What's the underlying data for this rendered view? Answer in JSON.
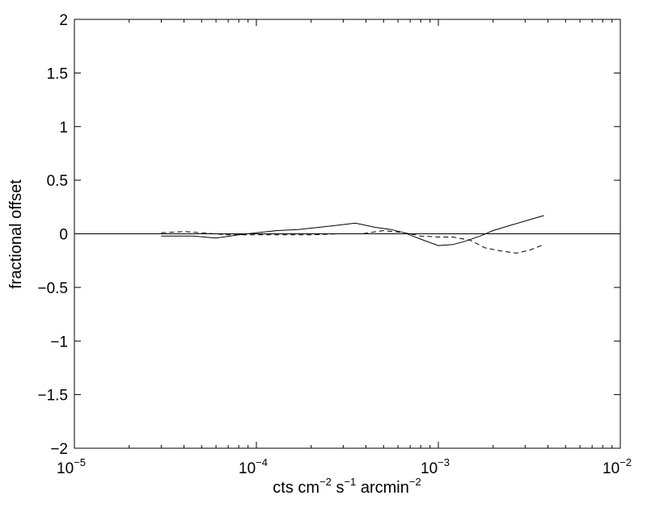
{
  "chart_data": {
    "type": "line",
    "title": "",
    "xlabel": {
      "parts": [
        {
          "text": "cts cm",
          "sup": false
        },
        {
          "text": "−2",
          "sup": true
        },
        {
          "text": " s",
          "sup": false
        },
        {
          "text": "−1",
          "sup": true
        },
        {
          "text": " arcmin",
          "sup": false
        },
        {
          "text": "−2",
          "sup": true
        }
      ]
    },
    "ylabel": "fractional offset",
    "xscale": "log",
    "xlim": [
      1e-05,
      0.01
    ],
    "ylim": [
      -2,
      2
    ],
    "grid": false,
    "legend": "none",
    "x_ticks": [
      {
        "value": 1e-05,
        "base": "10",
        "exp": "−5"
      },
      {
        "value": 0.0001,
        "base": "10",
        "exp": "−4"
      },
      {
        "value": 0.001,
        "base": "10",
        "exp": "−3"
      },
      {
        "value": 0.01,
        "base": "10",
        "exp": "−2"
      }
    ],
    "y_ticks": [
      {
        "value": 2,
        "label": "2"
      },
      {
        "value": 1.5,
        "label": "1.5"
      },
      {
        "value": 1,
        "label": "1"
      },
      {
        "value": 0.5,
        "label": "0.5"
      },
      {
        "value": 0,
        "label": "0"
      },
      {
        "value": -0.5,
        "label": "−0.5"
      },
      {
        "value": -1,
        "label": "−1"
      },
      {
        "value": -1.5,
        "label": "−1.5"
      },
      {
        "value": -2,
        "label": "−2"
      }
    ],
    "reference_line": {
      "y": 0,
      "color": "#000000"
    },
    "series": [
      {
        "style": "solid",
        "color": "#000000",
        "x": [
          3e-05,
          4.5e-05,
          6e-05,
          8e-05,
          0.0001,
          0.00013,
          0.00017,
          0.00022,
          0.00028,
          0.00035,
          0.00045,
          0.00055,
          0.00065,
          0.0008,
          0.001,
          0.0012,
          0.0014,
          0.0017,
          0.002,
          0.0025,
          0.003,
          0.0038
        ],
        "y": [
          -0.02,
          -0.02,
          -0.04,
          -0.01,
          0.01,
          0.03,
          0.04,
          0.06,
          0.08,
          0.1,
          0.06,
          0.04,
          0.01,
          -0.05,
          -0.11,
          -0.1,
          -0.07,
          -0.02,
          0.03,
          0.08,
          0.12,
          0.17
        ]
      },
      {
        "style": "dashed",
        "color": "#000000",
        "x": [
          3e-05,
          4e-05,
          5e-05,
          7e-05,
          0.0001,
          0.00014,
          0.0002,
          0.00028,
          0.00038,
          0.0005,
          0.00065,
          0.0008,
          0.001,
          0.0012,
          0.0015,
          0.0018,
          0.0022,
          0.0027,
          0.0032,
          0.0038
        ],
        "y": [
          0.01,
          0.02,
          0.01,
          -0.01,
          -0.01,
          -0.01,
          -0.01,
          0.0,
          0.0,
          0.03,
          0.01,
          -0.02,
          -0.03,
          -0.03,
          -0.06,
          -0.13,
          -0.16,
          -0.18,
          -0.15,
          -0.1
        ]
      }
    ]
  }
}
